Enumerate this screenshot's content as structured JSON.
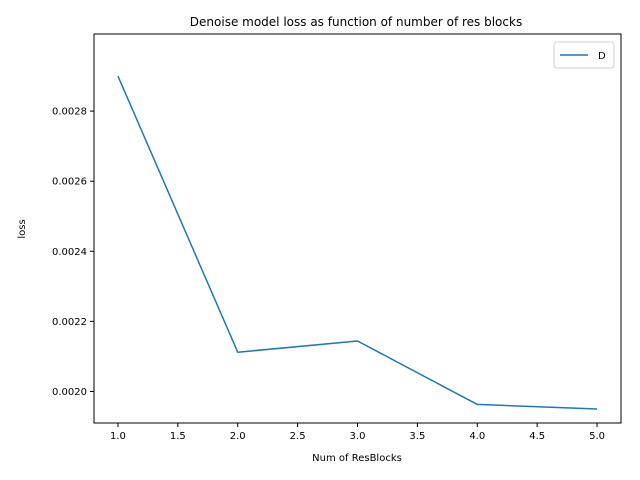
{
  "chart_data": {
    "type": "line",
    "title": "Denoise model loss as function of number of res blocks",
    "xlabel": "Num of ResBlocks",
    "ylabel": "loss",
    "xlim": [
      0.8,
      5.2
    ],
    "ylim": [
      0.00191,
      0.00302
    ],
    "x_ticks": [
      1.0,
      1.5,
      2.0,
      2.5,
      3.0,
      3.5,
      4.0,
      4.5,
      5.0
    ],
    "x_tick_labels": [
      "1.0",
      "1.5",
      "2.0",
      "2.5",
      "3.0",
      "3.5",
      "4.0",
      "4.5",
      "5.0"
    ],
    "y_ticks": [
      0.002,
      0.0022,
      0.0024,
      0.0026,
      0.0028
    ],
    "y_tick_labels": [
      "0.0020",
      "0.0022",
      "0.0024",
      "0.0026",
      "0.0028"
    ],
    "grid": false,
    "legend_position": "top-right",
    "series": [
      {
        "name": "D",
        "color": "#1f77b4",
        "x": [
          1,
          2,
          3,
          4,
          5
        ],
        "y": [
          0.0029,
          0.002112,
          0.002144,
          0.001963,
          0.00195
        ]
      }
    ]
  }
}
